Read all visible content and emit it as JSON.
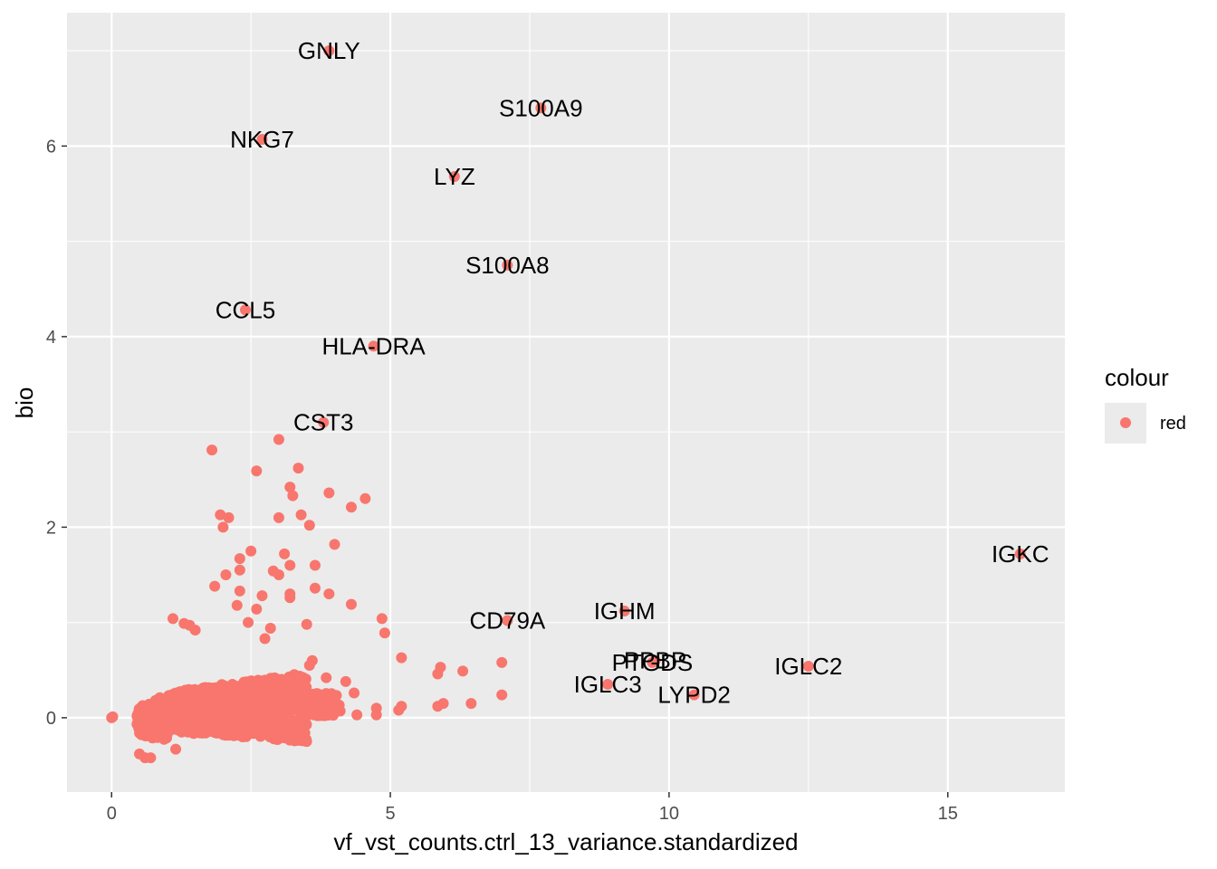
{
  "chart_data": {
    "type": "scatter",
    "xlabel": "vf_vst_counts.ctrl_13_variance.standardized",
    "ylabel": "bio",
    "xlim": [
      -0.8,
      17.1
    ],
    "ylim": [
      -0.78,
      7.4
    ],
    "x_ticks": [
      0,
      5,
      10,
      15
    ],
    "y_ticks": [
      0,
      2,
      4,
      6
    ],
    "grid": true,
    "legend": {
      "title": "colour",
      "entries": [
        "red"
      ],
      "placement": "right"
    },
    "colors": {
      "point": "#F8766D",
      "panel": "#EBEBEB",
      "grid": "#FFFFFF"
    },
    "labeled_points": [
      {
        "label": "GNLY",
        "x": 3.9,
        "y": 7.0
      },
      {
        "label": "S100A9",
        "x": 7.7,
        "y": 6.4
      },
      {
        "label": "NKG7",
        "x": 2.7,
        "y": 6.07
      },
      {
        "label": "LYZ",
        "x": 6.15,
        "y": 5.68
      },
      {
        "label": "S100A8",
        "x": 7.1,
        "y": 4.75
      },
      {
        "label": "CCL5",
        "x": 2.4,
        "y": 4.28
      },
      {
        "label": "HLA-DRA",
        "x": 4.7,
        "y": 3.9
      },
      {
        "label": "CST3",
        "x": 3.8,
        "y": 3.1
      },
      {
        "label": "IGKC",
        "x": 16.3,
        "y": 1.72
      },
      {
        "label": "CD79A",
        "x": 7.1,
        "y": 1.02
      },
      {
        "label": "IGHM",
        "x": 9.2,
        "y": 1.12
      },
      {
        "label": "PTGDS",
        "x": 9.7,
        "y": 0.58
      },
      {
        "label": "PPBP",
        "x": 9.75,
        "y": 0.6
      },
      {
        "label": "IGLC2",
        "x": 12.5,
        "y": 0.54
      },
      {
        "label": "IGLC3",
        "x": 8.9,
        "y": 0.35
      },
      {
        "label": "LYPD2",
        "x": 10.45,
        "y": 0.24
      }
    ],
    "points": [
      [
        0,
        0
      ],
      [
        0.02,
        0.01
      ],
      [
        1.8,
        2.81
      ],
      [
        3.0,
        2.92
      ],
      [
        2.6,
        2.59
      ],
      [
        3.35,
        2.62
      ],
      [
        3.2,
        2.42
      ],
      [
        3.25,
        2.33
      ],
      [
        3.9,
        2.36
      ],
      [
        4.55,
        2.3
      ],
      [
        4.3,
        2.21
      ],
      [
        1.95,
        2.13
      ],
      [
        2.1,
        2.1
      ],
      [
        2.0,
        2.0
      ],
      [
        3.0,
        2.1
      ],
      [
        3.4,
        2.13
      ],
      [
        3.55,
        2.02
      ],
      [
        4.0,
        1.82
      ],
      [
        2.5,
        1.75
      ],
      [
        2.3,
        1.67
      ],
      [
        3.1,
        1.72
      ],
      [
        3.2,
        1.6
      ],
      [
        3.65,
        1.6
      ],
      [
        2.9,
        1.54
      ],
      [
        2.05,
        1.5
      ],
      [
        2.3,
        1.55
      ],
      [
        3.0,
        1.5
      ],
      [
        1.85,
        1.38
      ],
      [
        2.3,
        1.33
      ],
      [
        2.7,
        1.28
      ],
      [
        3.2,
        1.3
      ],
      [
        3.2,
        1.26
      ],
      [
        3.65,
        1.36
      ],
      [
        3.9,
        1.3
      ],
      [
        4.3,
        1.19
      ],
      [
        2.25,
        1.18
      ],
      [
        2.6,
        1.14
      ],
      [
        2.45,
        1.0
      ],
      [
        3.5,
        0.98
      ],
      [
        4.85,
        1.04
      ],
      [
        4.9,
        0.89
      ],
      [
        2.85,
        0.94
      ],
      [
        1.1,
        1.04
      ],
      [
        1.3,
        0.99
      ],
      [
        1.4,
        0.97
      ],
      [
        1.5,
        0.92
      ],
      [
        2.75,
        0.83
      ],
      [
        3.6,
        0.6
      ],
      [
        3.55,
        0.55
      ],
      [
        3.85,
        0.42
      ],
      [
        4.2,
        0.38
      ],
      [
        4.35,
        0.26
      ],
      [
        5.2,
        0.63
      ],
      [
        5.9,
        0.53
      ],
      [
        5.85,
        0.46
      ],
      [
        6.3,
        0.49
      ],
      [
        7.0,
        0.58
      ],
      [
        7.0,
        0.24
      ],
      [
        6.45,
        0.15
      ],
      [
        5.95,
        0.15
      ],
      [
        5.85,
        0.12
      ],
      [
        5.2,
        0.12
      ],
      [
        5.15,
        0.08
      ],
      [
        4.75,
        0.1
      ],
      [
        4.75,
        0.03
      ],
      [
        4.4,
        0.03
      ],
      [
        4.1,
        0.07
      ],
      [
        3.9,
        0.1
      ],
      [
        0.7,
        -0.42
      ],
      [
        0.5,
        -0.38
      ],
      [
        0.6,
        -0.42
      ],
      [
        1.15,
        -0.33
      ]
    ]
  }
}
